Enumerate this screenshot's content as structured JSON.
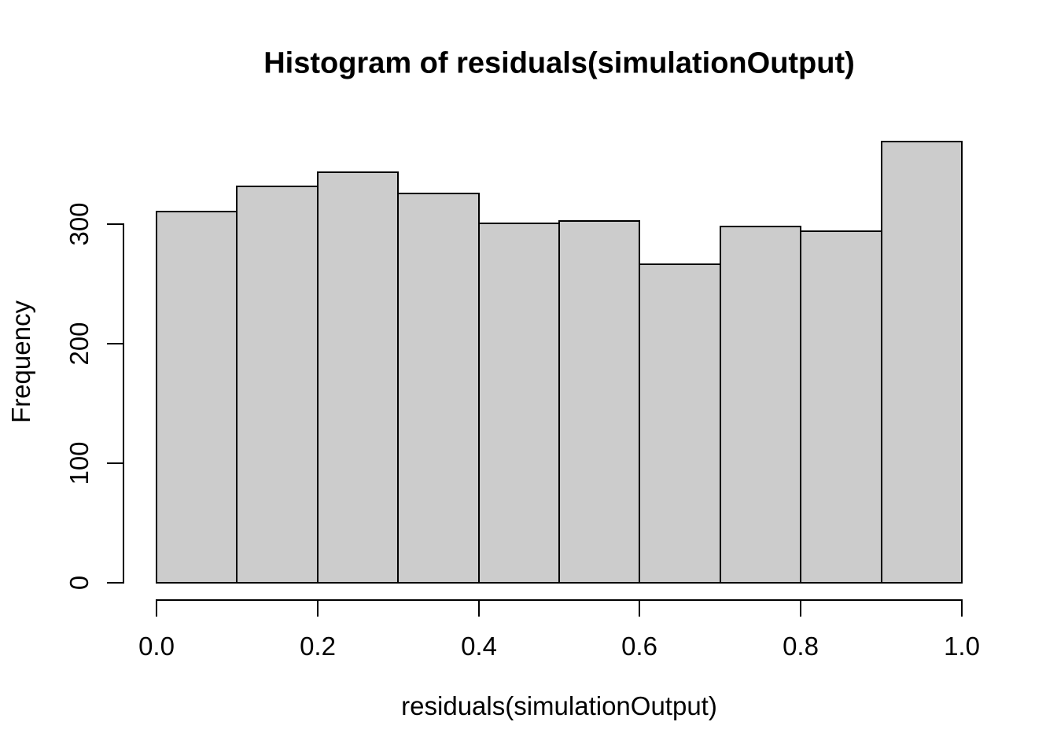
{
  "chart_data": {
    "type": "bar",
    "subtype": "histogram",
    "title": "Histogram of residuals(simulationOutput)",
    "xlabel": "residuals(simulationOutput)",
    "ylabel": "Frequency",
    "bin_edges": [
      0.0,
      0.1,
      0.2,
      0.3,
      0.4,
      0.5,
      0.6,
      0.7,
      0.8,
      0.9,
      1.0
    ],
    "counts": [
      311,
      332,
      344,
      326,
      301,
      303,
      267,
      299,
      295,
      370
    ],
    "x_tick_values": [
      0.0,
      0.2,
      0.4,
      0.6,
      0.8,
      1.0
    ],
    "x_tick_labels": [
      "0.0",
      "0.2",
      "0.4",
      "0.6",
      "0.8",
      "1.0"
    ],
    "y_tick_values": [
      0,
      100,
      200,
      300
    ],
    "y_tick_labels": [
      "0",
      "100",
      "200",
      "300"
    ],
    "xlim": [
      0.0,
      1.0
    ],
    "ylim": [
      0,
      370
    ],
    "grid": false,
    "legend": null,
    "bar_fill": "#cccccc",
    "bar_border": "#000000",
    "background": "#ffffff",
    "text_color": "#000000"
  }
}
